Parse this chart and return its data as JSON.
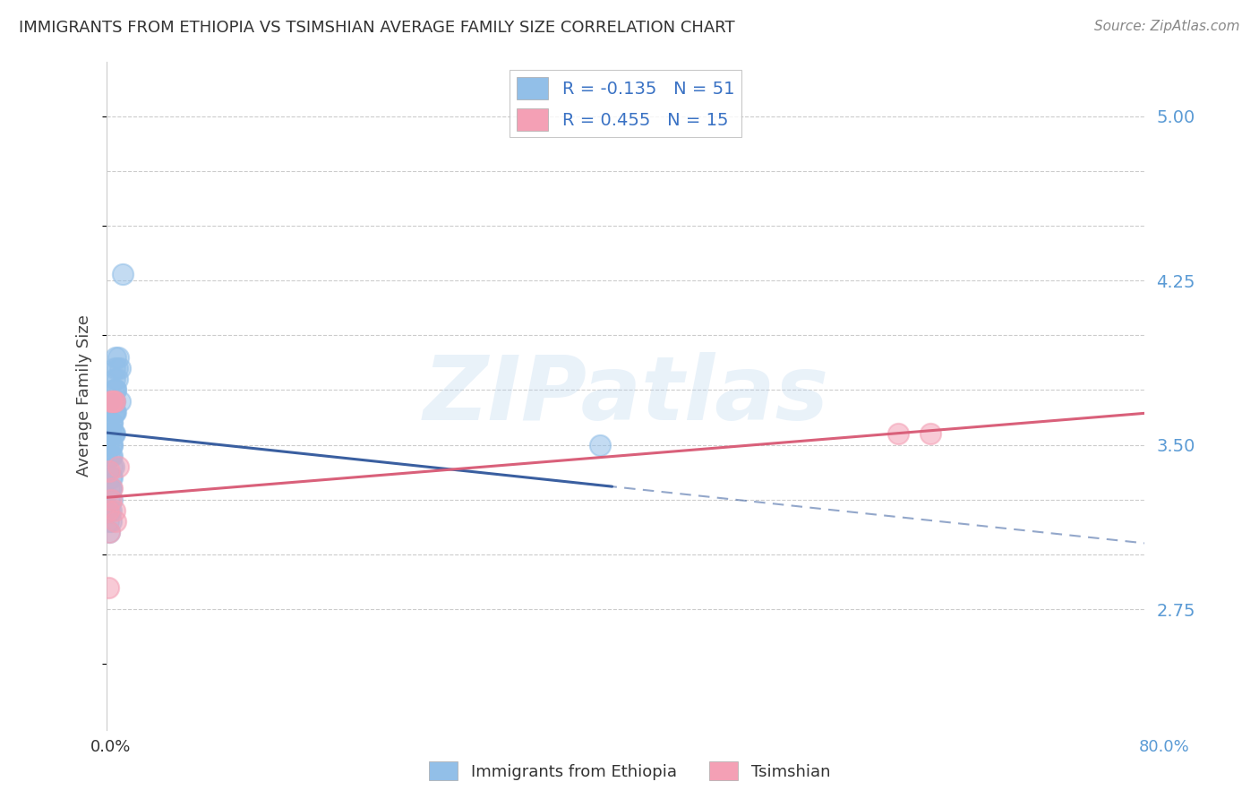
{
  "title": "IMMIGRANTS FROM ETHIOPIA VS TSIMSHIAN AVERAGE FAMILY SIZE CORRELATION CHART",
  "source": "Source: ZipAtlas.com",
  "ylabel": "Average Family Size",
  "ytick_labels_shown": [
    2.75,
    3.5,
    4.25,
    5.0
  ],
  "xlim": [
    0.0,
    0.8
  ],
  "ylim": [
    2.2,
    5.25
  ],
  "watermark": "ZIPatlas",
  "ethiopia_x": [
    0.001,
    0.002,
    0.001,
    0.003,
    0.002,
    0.004,
    0.003,
    0.005,
    0.004,
    0.003,
    0.005,
    0.006,
    0.005,
    0.004,
    0.003,
    0.006,
    0.005,
    0.004,
    0.007,
    0.006,
    0.005,
    0.003,
    0.002,
    0.004,
    0.006,
    0.008,
    0.01,
    0.007,
    0.006,
    0.003,
    0.001,
    0.002,
    0.004,
    0.003,
    0.005,
    0.007,
    0.008,
    0.005,
    0.003,
    0.004,
    0.002,
    0.004,
    0.006,
    0.003,
    0.009,
    0.012,
    0.01,
    0.007,
    0.001,
    0.002,
    0.38
  ],
  "ethiopia_y": [
    3.2,
    3.3,
    3.5,
    3.6,
    3.45,
    3.35,
    3.55,
    3.65,
    3.25,
    3.15,
    3.7,
    3.85,
    3.75,
    3.6,
    3.5,
    3.8,
    3.55,
    3.45,
    3.9,
    3.7,
    3.4,
    3.3,
    3.2,
    3.5,
    3.65,
    3.8,
    3.7,
    3.65,
    3.55,
    3.35,
    3.15,
    3.25,
    3.6,
    3.45,
    3.7,
    3.75,
    3.85,
    3.55,
    3.3,
    3.4,
    3.1,
    3.5,
    3.65,
    3.2,
    3.9,
    4.28,
    3.85,
    3.75,
    3.6,
    3.55,
    3.5
  ],
  "tsimshian_x": [
    0.001,
    0.002,
    0.003,
    0.001,
    0.005,
    0.003,
    0.006,
    0.002,
    0.007,
    0.004,
    0.004,
    0.006,
    0.009,
    0.61,
    0.635
  ],
  "tsimshian_y": [
    3.2,
    3.38,
    3.7,
    2.85,
    3.7,
    3.25,
    3.2,
    3.1,
    3.15,
    3.3,
    3.7,
    3.7,
    3.4,
    3.55,
    3.55
  ],
  "ethiopia_color": "#92bfe8",
  "tsimshian_color": "#f4a0b5",
  "ethiopia_line_color": "#3a5fa0",
  "tsimshian_line_color": "#d9607a",
  "ethiopia_r": -0.135,
  "ethiopia_n": 51,
  "tsimshian_r": 0.455,
  "tsimshian_n": 15,
  "legend_label_ethiopia": "Immigrants from Ethiopia",
  "legend_label_tsimshian": "Tsimshian",
  "grid_color": "#cccccc",
  "background_color": "#ffffff",
  "title_color": "#333333",
  "right_axis_color": "#5b9bd5",
  "source_color": "#888888",
  "legend_text_color": "#3a72c4"
}
